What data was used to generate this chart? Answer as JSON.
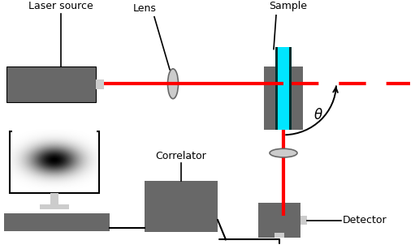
{
  "bg_color": "#ffffff",
  "gray_dark": "#686868",
  "gray_lighter": "#cccccc",
  "cyan_color": "#00e5ff",
  "red_color": "#ff0000",
  "black_color": "#000000",
  "laser_label": "Laser source",
  "lens_label": "Lens",
  "sample_label": "Sample",
  "correlator_label": "Correlator",
  "detector_label": "Detector",
  "theta_label": "θ",
  "figw": 5.11,
  "figh": 3.07,
  "dpi": 100
}
